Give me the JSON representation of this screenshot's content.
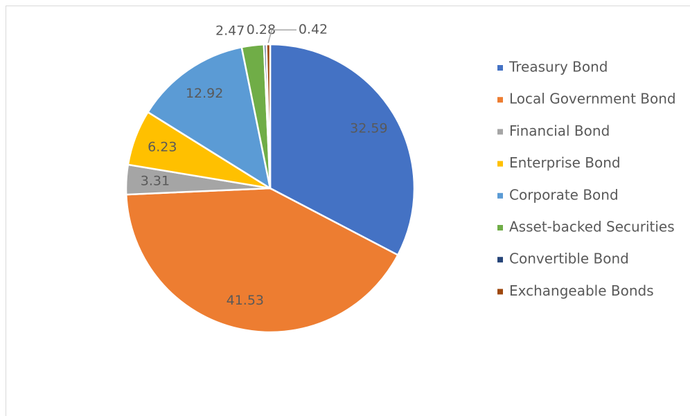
{
  "chart_data": {
    "type": "pie",
    "categories": [
      "Treasury Bond",
      "Local Government Bond",
      "Financial Bond",
      "Enterprise Bond",
      "Corporate Bond",
      "Asset-backed Securities",
      "Convertible Bond",
      "Exchangeable Bonds"
    ],
    "values": [
      32.59,
      41.53,
      3.31,
      6.23,
      12.92,
      2.47,
      0.28,
      0.42
    ],
    "colors": [
      "#4472c4",
      "#ed7d31",
      "#a5a5a5",
      "#ffc000",
      "#5b9bd5",
      "#70ad47",
      "#264478",
      "#9e480e"
    ],
    "legend": "right"
  }
}
